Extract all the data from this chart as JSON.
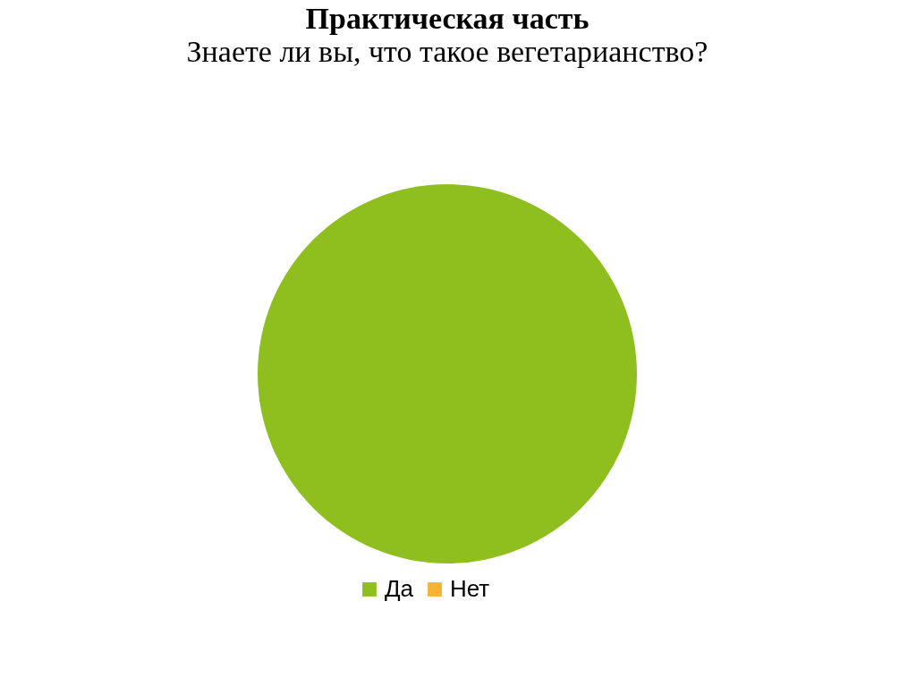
{
  "chart_data": {
    "type": "pie",
    "title": "Практическая часть",
    "subtitle": "Знаете ли вы, что такое вегетарианство?",
    "categories": [
      "Да",
      "Нет"
    ],
    "values": [
      100,
      0
    ],
    "colors": [
      "#8ebf1f",
      "#f9b233"
    ],
    "legend": "bottom"
  }
}
